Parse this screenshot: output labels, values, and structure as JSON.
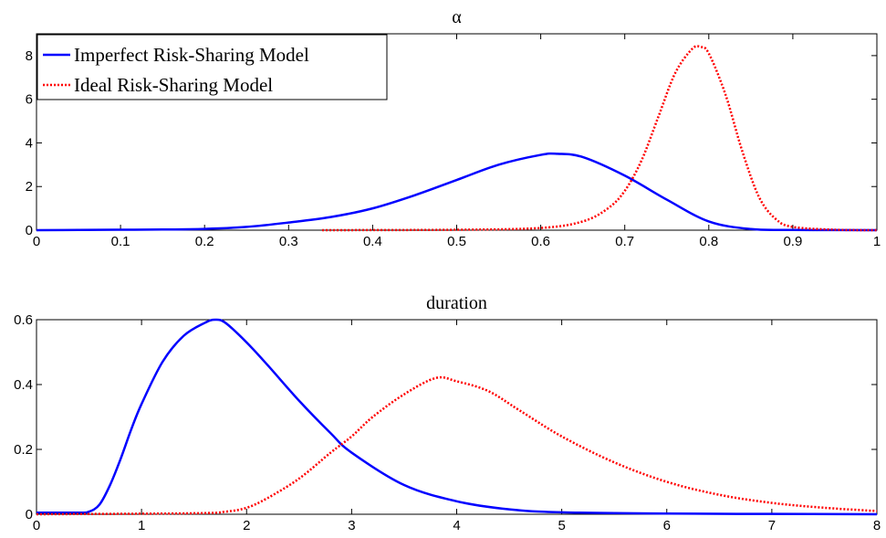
{
  "chart_data": [
    {
      "type": "line",
      "title": "α",
      "xlim": [
        0,
        1
      ],
      "ylim": [
        0,
        9
      ],
      "xticks": [
        "0",
        "0.1",
        "0.2",
        "0.3",
        "0.4",
        "0.5",
        "0.6",
        "0.7",
        "0.8",
        "0.9",
        "1"
      ],
      "yticks": [
        "0",
        "2",
        "4",
        "6",
        "8"
      ],
      "legend": "top-left",
      "series": [
        {
          "name": "Imperfect Risk-Sharing Model",
          "color": "#0000ff",
          "style": "solid",
          "x": [
            0,
            0.05,
            0.1,
            0.15,
            0.2,
            0.25,
            0.3,
            0.35,
            0.4,
            0.45,
            0.5,
            0.55,
            0.6,
            0.62,
            0.65,
            0.7,
            0.75,
            0.8,
            0.85,
            0.9,
            1.0
          ],
          "y": [
            0,
            0.01,
            0.02,
            0.03,
            0.06,
            0.15,
            0.35,
            0.6,
            1.0,
            1.6,
            2.3,
            3.0,
            3.45,
            3.5,
            3.35,
            2.5,
            1.4,
            0.4,
            0.05,
            0.01,
            0
          ]
        },
        {
          "name": "Ideal Risk-Sharing Model",
          "color": "#ff0000",
          "style": "dotted",
          "x": [
            0.34,
            0.5,
            0.6,
            0.65,
            0.68,
            0.7,
            0.72,
            0.74,
            0.76,
            0.78,
            0.79,
            0.8,
            0.82,
            0.84,
            0.86,
            0.88,
            0.9,
            0.95,
            1.0
          ],
          "y": [
            0,
            0.02,
            0.1,
            0.4,
            1.0,
            1.8,
            3.2,
            5.2,
            7.2,
            8.3,
            8.4,
            8.1,
            6.2,
            3.6,
            1.5,
            0.5,
            0.15,
            0.02,
            0
          ]
        }
      ]
    },
    {
      "type": "line",
      "title": "duration",
      "xlim": [
        0,
        8
      ],
      "ylim": [
        0,
        0.6
      ],
      "xticks": [
        "0",
        "1",
        "2",
        "3",
        "4",
        "5",
        "6",
        "7",
        "8"
      ],
      "yticks": [
        "0",
        "0.2",
        "0.4",
        "0.6"
      ],
      "series": [
        {
          "name": "Imperfect Risk-Sharing Model",
          "color": "#0000ff",
          "style": "solid",
          "x": [
            0,
            0.4,
            0.5,
            0.6,
            0.7,
            0.8,
            0.9,
            1.0,
            1.2,
            1.4,
            1.6,
            1.7,
            1.8,
            2.0,
            2.2,
            2.5,
            2.8,
            3.0,
            3.5,
            4.0,
            4.5,
            5.0,
            6.0,
            7.0,
            8.0
          ],
          "y": [
            0.005,
            0.005,
            0.008,
            0.03,
            0.09,
            0.17,
            0.26,
            0.34,
            0.47,
            0.55,
            0.59,
            0.6,
            0.59,
            0.53,
            0.46,
            0.35,
            0.25,
            0.19,
            0.09,
            0.04,
            0.015,
            0.006,
            0.002,
            0.001,
            0
          ]
        },
        {
          "name": "Ideal Risk-Sharing Model",
          "color": "#ff0000",
          "style": "dotted",
          "x": [
            0,
            1.5,
            1.8,
            2.0,
            2.2,
            2.5,
            2.8,
            3.0,
            3.2,
            3.5,
            3.8,
            4.0,
            4.3,
            4.6,
            5.0,
            5.5,
            6.0,
            6.5,
            7.0,
            7.5,
            8.0
          ],
          "y": [
            0,
            0.003,
            0.008,
            0.02,
            0.05,
            0.11,
            0.19,
            0.24,
            0.3,
            0.37,
            0.42,
            0.41,
            0.38,
            0.32,
            0.24,
            0.16,
            0.1,
            0.06,
            0.035,
            0.02,
            0.01
          ]
        }
      ]
    }
  ]
}
